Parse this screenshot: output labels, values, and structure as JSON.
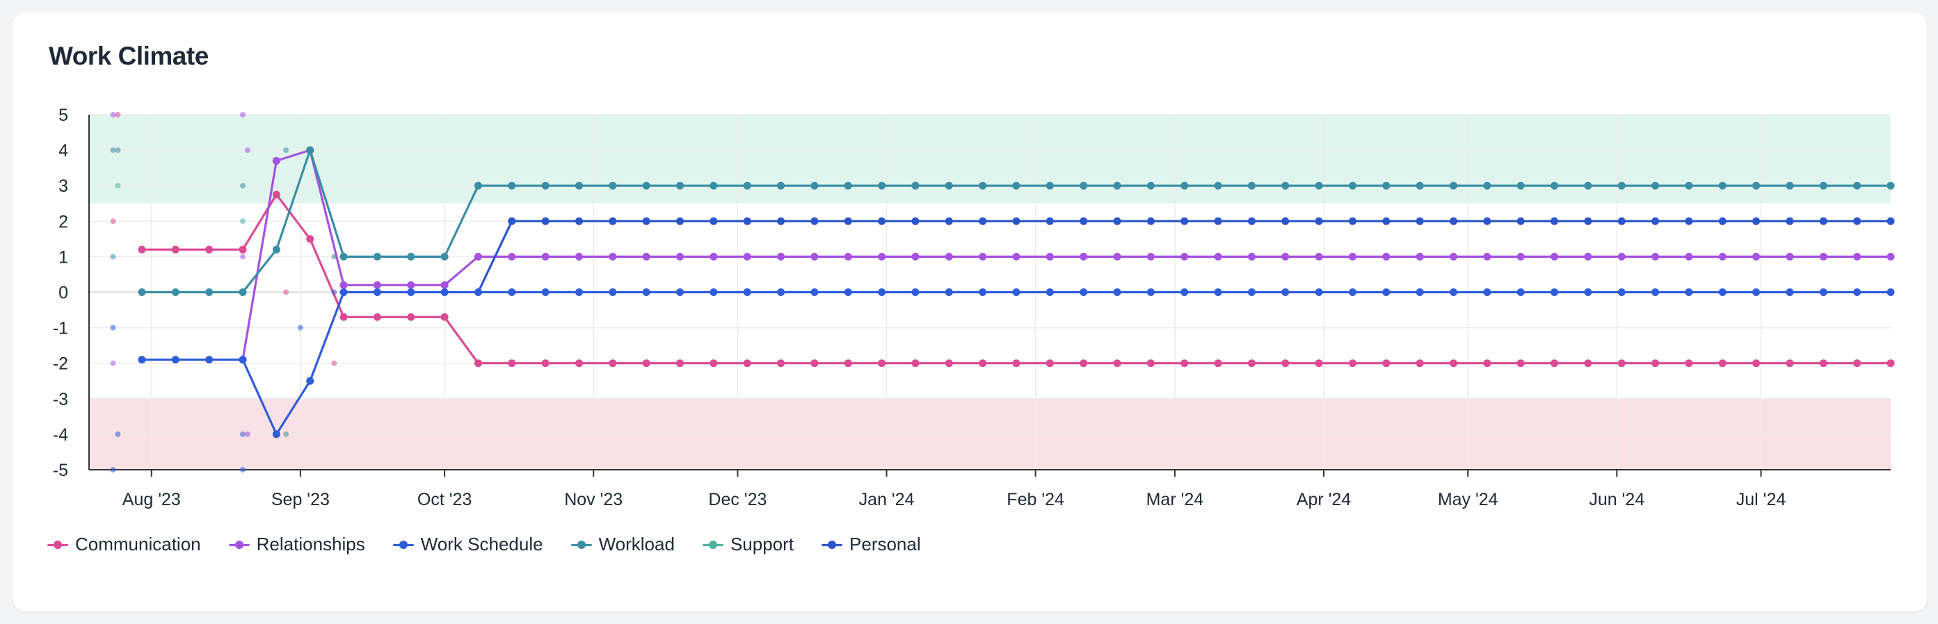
{
  "card": {
    "title": "Work Climate"
  },
  "chart_data": {
    "type": "line",
    "title": "Work Climate",
    "xlabel": "",
    "ylabel": "",
    "ylim": [
      -5,
      5
    ],
    "y_ticks": [
      "5",
      "4",
      "3",
      "2",
      "1",
      "0",
      "-1",
      "-2",
      "-3",
      "-4",
      "-5"
    ],
    "x_range": [
      "2023-07-19",
      "2024-07-28"
    ],
    "x_ticks": [
      {
        "label": "Aug '23",
        "date": "2023-08-01"
      },
      {
        "label": "Sep '23",
        "date": "2023-09-01"
      },
      {
        "label": "Oct '23",
        "date": "2023-10-01"
      },
      {
        "label": "Nov '23",
        "date": "2023-11-01"
      },
      {
        "label": "Dec '23",
        "date": "2023-12-01"
      },
      {
        "label": "Jan '24",
        "date": "2024-01-01"
      },
      {
        "label": "Feb '24",
        "date": "2024-02-01"
      },
      {
        "label": "Mar '24",
        "date": "2024-03-01"
      },
      {
        "label": "Apr '24",
        "date": "2024-04-01"
      },
      {
        "label": "May '24",
        "date": "2024-05-01"
      },
      {
        "label": "Jun '24",
        "date": "2024-06-01"
      },
      {
        "label": "Jul '24",
        "date": "2024-07-01"
      }
    ],
    "bands": [
      {
        "from": 2.5,
        "to": 5,
        "color": "#e0f5ee"
      },
      {
        "from": -5,
        "to": -3,
        "color": "#fae1e6"
      }
    ],
    "grid": true,
    "legend_position": "bottom-left",
    "series": [
      {
        "name": "Communication",
        "color": "#db4a94",
        "points": [
          [
            "2023-07-30",
            1.2
          ],
          [
            "2023-08-06",
            1.2
          ],
          [
            "2023-08-13",
            1.2
          ],
          [
            "2023-08-20",
            1.2
          ],
          [
            "2023-08-27",
            2.75
          ],
          [
            "2023-09-03",
            1.5
          ],
          [
            "2023-09-10",
            -0.7
          ],
          [
            "2023-09-17",
            -0.7
          ],
          [
            "2023-09-24",
            -0.7
          ],
          [
            "2023-10-01",
            -0.7
          ],
          [
            "2023-10-08",
            -2
          ]
        ],
        "flat_after": [
          "2023-10-08",
          "2024-07-28",
          -2
        ],
        "scatter": [
          [
            "2023-07-25",
            5
          ],
          [
            "2023-07-24",
            2
          ],
          [
            "2023-08-29",
            0
          ],
          [
            "2023-09-08",
            -2
          ]
        ]
      },
      {
        "name": "Relationships",
        "color": "#a552e0",
        "points": [
          [
            "2023-08-20",
            -1.9
          ],
          [
            "2023-08-27",
            3.7
          ],
          [
            "2023-09-03",
            4
          ],
          [
            "2023-09-10",
            0.2
          ],
          [
            "2023-09-17",
            0.2
          ],
          [
            "2023-09-24",
            0.2
          ],
          [
            "2023-10-01",
            0.2
          ],
          [
            "2023-10-08",
            1
          ]
        ],
        "flat_after": [
          "2023-10-08",
          "2024-07-28",
          1
        ],
        "scatter": [
          [
            "2023-07-24",
            5
          ],
          [
            "2023-07-24",
            -2
          ],
          [
            "2023-08-20",
            5
          ],
          [
            "2023-08-21",
            4
          ],
          [
            "2023-08-21",
            -4
          ],
          [
            "2023-08-20",
            1
          ]
        ]
      },
      {
        "name": "Work Schedule",
        "color": "#2f5cd9",
        "points": [
          [
            "2023-07-30",
            -1.9
          ],
          [
            "2023-08-06",
            -1.9
          ],
          [
            "2023-08-13",
            -1.9
          ],
          [
            "2023-08-20",
            -1.9
          ],
          [
            "2023-08-27",
            -4
          ],
          [
            "2023-09-03",
            -2.5
          ],
          [
            "2023-09-10",
            0
          ],
          [
            "2023-09-17",
            0
          ],
          [
            "2023-09-24",
            0
          ],
          [
            "2023-10-01",
            0
          ],
          [
            "2023-10-08",
            0
          ]
        ],
        "flat_after": [
          "2023-10-08",
          "2024-07-28",
          0
        ],
        "scatter": [
          [
            "2023-07-24",
            -1
          ],
          [
            "2023-07-25",
            -4
          ],
          [
            "2023-07-24",
            -5
          ],
          [
            "2023-08-20",
            -4
          ],
          [
            "2023-09-08",
            0
          ],
          [
            "2023-09-01",
            -1
          ],
          [
            "2023-08-20",
            -5
          ]
        ]
      },
      {
        "name": "Workload",
        "color": "#3a8ea5",
        "points": [
          [
            "2023-07-30",
            0
          ],
          [
            "2023-08-06",
            0
          ],
          [
            "2023-08-13",
            0
          ],
          [
            "2023-08-20",
            0
          ],
          [
            "2023-08-27",
            1.2
          ],
          [
            "2023-09-03",
            4
          ],
          [
            "2023-09-10",
            1
          ],
          [
            "2023-09-17",
            1
          ],
          [
            "2023-09-24",
            1
          ],
          [
            "2023-10-01",
            1
          ],
          [
            "2023-10-08",
            3
          ]
        ],
        "flat_after": [
          "2023-10-08",
          "2024-07-28",
          3
        ],
        "scatter": [
          [
            "2023-07-24",
            4
          ],
          [
            "2023-07-25",
            4
          ],
          [
            "2023-07-24",
            1
          ],
          [
            "2023-08-20",
            3
          ],
          [
            "2023-08-29",
            4
          ],
          [
            "2023-08-29",
            -4
          ],
          [
            "2023-09-08",
            1
          ]
        ]
      },
      {
        "name": "Support",
        "color": "#4fb3a0",
        "points": [],
        "scatter": [
          [
            "2023-07-25",
            3
          ],
          [
            "2023-08-20",
            2
          ]
        ]
      },
      {
        "name": "Personal",
        "color": "#2c55cc",
        "points": [
          [
            "2023-10-15",
            2
          ]
        ],
        "flat_after": [
          "2023-10-15",
          "2024-07-28",
          2
        ],
        "connect_from": [
          "2023-10-08",
          0
        ],
        "scatter": []
      }
    ]
  }
}
